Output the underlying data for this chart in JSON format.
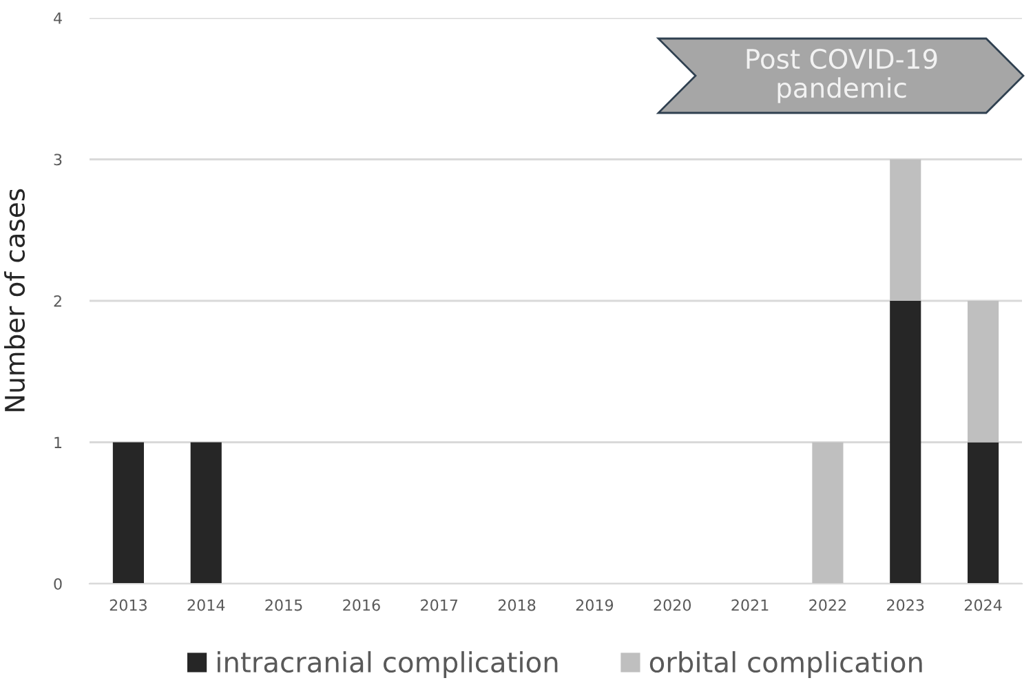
{
  "chart_data": {
    "type": "bar",
    "ylabel": "Number of cases",
    "categories": [
      "2013",
      "2014",
      "2015",
      "2016",
      "2017",
      "2018",
      "2019",
      "2020",
      "2021",
      "2022",
      "2023",
      "2024"
    ],
    "series": [
      {
        "name": "intracranial complication",
        "color": "#262626",
        "values": [
          1,
          1,
          0,
          0,
          0,
          0,
          0,
          0,
          0,
          0,
          2,
          1
        ]
      },
      {
        "name": "orbital complication",
        "color": "#bfbfbf",
        "values": [
          0,
          0,
          0,
          0,
          0,
          0,
          0,
          0,
          0,
          1,
          1,
          1
        ]
      }
    ],
    "stacked": true,
    "ylim": [
      0,
      4
    ],
    "yticks": [
      0,
      1,
      2,
      3,
      4
    ],
    "grid": "y",
    "legend": "bottom",
    "annotations": [
      "Post COVID-19\npandemic"
    ]
  }
}
